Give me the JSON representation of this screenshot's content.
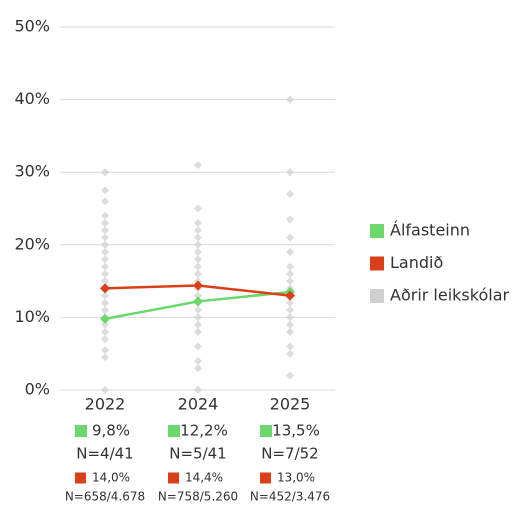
{
  "chart_data": {
    "type": "line",
    "categories": [
      "2022",
      "2024",
      "2025"
    ],
    "ylim": [
      0,
      50
    ],
    "yticks": [
      {
        "value": 0,
        "label": "0%"
      },
      {
        "value": 10,
        "label": "10%"
      },
      {
        "value": 20,
        "label": "20%"
      },
      {
        "value": 30,
        "label": "30%"
      },
      {
        "value": 40,
        "label": "40%"
      },
      {
        "value": 50,
        "label": "50%"
      }
    ],
    "grid": true,
    "legend": "right",
    "series": [
      {
        "name": "Álfasteinn",
        "color": "#6ad86a",
        "values": [
          9.8,
          12.2,
          13.5
        ],
        "value_labels": [
          "9,8%",
          "12,2%",
          "13,5%"
        ],
        "n_labels": [
          "N=4/41",
          "N=5/41",
          "N=7/52"
        ]
      },
      {
        "name": "Landið",
        "color": "#d9401a",
        "values": [
          14.0,
          14.4,
          13.0
        ],
        "value_labels": [
          "14,0%",
          "14,4%",
          "13,0%"
        ],
        "n_labels": [
          "N=658/4.678",
          "N=758/5.260",
          "N=452/3.476"
        ]
      },
      {
        "name": "Aðrir leikskólar",
        "color": "#cfcfcf",
        "kind": "scatter",
        "values": [
          [
            0,
            4.5,
            5.5,
            7,
            8,
            9,
            10,
            11,
            12,
            13,
            14,
            15,
            16,
            17,
            18,
            19,
            20,
            21,
            22,
            23,
            24,
            26,
            27.5,
            30
          ],
          [
            0,
            3,
            4,
            6,
            8,
            9,
            10,
            11,
            12,
            13,
            14,
            15,
            16,
            17,
            18,
            19,
            20,
            21,
            22,
            23,
            25,
            31
          ],
          [
            2,
            5,
            6,
            8,
            9,
            10,
            11,
            12,
            13,
            14,
            15,
            16,
            17,
            19,
            21,
            23.5,
            27,
            30,
            40
          ]
        ]
      }
    ]
  }
}
